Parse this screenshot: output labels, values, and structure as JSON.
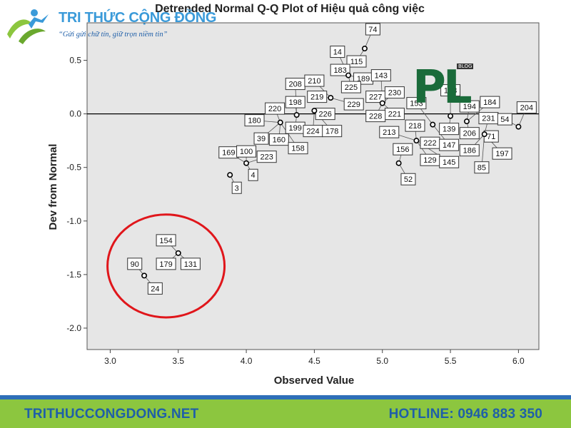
{
  "brand": {
    "name": "TRI THỨC CỘNG ĐỒNG",
    "slogan": "“Gửi gửi chữ tín, giữ trọn niềm tin”"
  },
  "watermark": {
    "text": "PL",
    "badge": "BLOG"
  },
  "footer": {
    "site": "TRITHUCCONGDONG.NET",
    "hotline": "HOTLINE: 0946 883 350"
  },
  "chart_data": {
    "type": "scatter",
    "title": "Detrended Normal Q-Q Plot of Hiệu quả công việc",
    "xlabel": "Observed Value",
    "ylabel": "Dev from Normal",
    "xlim": [
      2.83,
      6.15
    ],
    "ylim": [
      -2.2,
      0.85
    ],
    "xticks": [
      "3.0",
      "3.5",
      "4.0",
      "4.5",
      "5.0",
      "5.5",
      "6.0"
    ],
    "xtick_values": [
      3.0,
      3.5,
      4.0,
      4.5,
      5.0,
      5.5,
      6.0
    ],
    "yticks": [
      "0.5",
      "0.0",
      "-0.5",
      "-1.0",
      "-1.5",
      "-2.0"
    ],
    "ytick_values": [
      0.5,
      0.0,
      -0.5,
      -1.0,
      -1.5,
      -2.0
    ],
    "reference_line": 0.0,
    "grid": false,
    "colors": {
      "plot_bg": "#e6e6e6",
      "point": "#000000",
      "highlight": "#e0161b",
      "line": "#000000"
    },
    "points": [
      {
        "x": 3.25,
        "y": -1.51
      },
      {
        "x": 3.5,
        "y": -1.3
      },
      {
        "x": 3.88,
        "y": -0.57
      },
      {
        "x": 4.0,
        "y": -0.46
      },
      {
        "x": 4.25,
        "y": -0.08
      },
      {
        "x": 4.37,
        "y": -0.01
      },
      {
        "x": 4.5,
        "y": 0.03
      },
      {
        "x": 4.62,
        "y": 0.15
      },
      {
        "x": 4.75,
        "y": 0.36
      },
      {
        "x": 4.87,
        "y": 0.61
      },
      {
        "x": 5.0,
        "y": 0.1
      },
      {
        "x": 5.12,
        "y": -0.46
      },
      {
        "x": 5.25,
        "y": -0.25
      },
      {
        "x": 5.37,
        "y": -0.1
      },
      {
        "x": 5.5,
        "y": -0.02
      },
      {
        "x": 5.62,
        "y": -0.07
      },
      {
        "x": 5.75,
        "y": -0.19
      },
      {
        "x": 6.0,
        "y": -0.12
      }
    ],
    "case_labels": [
      {
        "text": "74",
        "x": 4.93,
        "y": 0.79
      },
      {
        "text": "14",
        "x": 4.67,
        "y": 0.58
      },
      {
        "text": "115",
        "x": 4.81,
        "y": 0.49
      },
      {
        "text": "183",
        "x": 4.69,
        "y": 0.41
      },
      {
        "text": "189",
        "x": 4.86,
        "y": 0.33
      },
      {
        "text": "143",
        "x": 4.99,
        "y": 0.36
      },
      {
        "text": "225",
        "x": 4.77,
        "y": 0.25
      },
      {
        "text": "208",
        "x": 4.36,
        "y": 0.28
      },
      {
        "text": "210",
        "x": 4.5,
        "y": 0.31
      },
      {
        "text": "219",
        "x": 4.52,
        "y": 0.16
      },
      {
        "text": "229",
        "x": 4.79,
        "y": 0.09
      },
      {
        "text": "227",
        "x": 4.95,
        "y": 0.16
      },
      {
        "text": "230",
        "x": 5.09,
        "y": 0.2
      },
      {
        "text": "221",
        "x": 5.09,
        "y": 0.0
      },
      {
        "text": "228",
        "x": 4.95,
        "y": -0.02
      },
      {
        "text": "198",
        "x": 4.36,
        "y": 0.11
      },
      {
        "text": "226",
        "x": 4.58,
        "y": 0.0
      },
      {
        "text": "220",
        "x": 4.21,
        "y": 0.05
      },
      {
        "text": "180",
        "x": 4.06,
        "y": -0.06
      },
      {
        "text": "199",
        "x": 4.36,
        "y": -0.13
      },
      {
        "text": "224",
        "x": 4.49,
        "y": -0.16
      },
      {
        "text": "178",
        "x": 4.63,
        "y": -0.16
      },
      {
        "text": "39",
        "x": 4.11,
        "y": -0.23
      },
      {
        "text": "160",
        "x": 4.24,
        "y": -0.24
      },
      {
        "text": "158",
        "x": 4.38,
        "y": -0.32
      },
      {
        "text": "169",
        "x": 3.87,
        "y": -0.36
      },
      {
        "text": "100",
        "x": 4.0,
        "y": -0.35
      },
      {
        "text": "223",
        "x": 4.15,
        "y": -0.4
      },
      {
        "text": "4",
        "x": 4.05,
        "y": -0.57
      },
      {
        "text": "3",
        "x": 3.93,
        "y": -0.69
      },
      {
        "text": "153",
        "x": 5.25,
        "y": 0.1
      },
      {
        "text": "213",
        "x": 5.05,
        "y": -0.17
      },
      {
        "text": "218",
        "x": 5.24,
        "y": -0.11
      },
      {
        "text": "222",
        "x": 5.35,
        "y": -0.27
      },
      {
        "text": "156",
        "x": 5.15,
        "y": -0.33
      },
      {
        "text": "129",
        "x": 5.35,
        "y": -0.43
      },
      {
        "text": "147",
        "x": 5.49,
        "y": -0.29
      },
      {
        "text": "145",
        "x": 5.49,
        "y": -0.45
      },
      {
        "text": "139",
        "x": 5.49,
        "y": -0.14
      },
      {
        "text": "52",
        "x": 5.19,
        "y": -0.61
      },
      {
        "text": "163",
        "x": 5.5,
        "y": 0.22
      },
      {
        "text": "194",
        "x": 5.64,
        "y": 0.07
      },
      {
        "text": "184",
        "x": 5.79,
        "y": 0.11
      },
      {
        "text": "231",
        "x": 5.78,
        "y": -0.04
      },
      {
        "text": "54",
        "x": 5.9,
        "y": -0.05
      },
      {
        "text": "204",
        "x": 6.06,
        "y": 0.06
      },
      {
        "text": "206",
        "x": 5.64,
        "y": -0.18
      },
      {
        "text": "71",
        "x": 5.8,
        "y": -0.21
      },
      {
        "text": "186",
        "x": 5.64,
        "y": -0.34
      },
      {
        "text": "197",
        "x": 5.88,
        "y": -0.37
      },
      {
        "text": "85",
        "x": 5.73,
        "y": -0.5
      },
      {
        "text": "154",
        "x": 3.41,
        "y": -1.18
      },
      {
        "text": "90",
        "x": 3.18,
        "y": -1.4
      },
      {
        "text": "179",
        "x": 3.41,
        "y": -1.4
      },
      {
        "text": "131",
        "x": 3.59,
        "y": -1.4
      },
      {
        "text": "24",
        "x": 3.33,
        "y": -1.63
      }
    ],
    "highlight_region": {
      "cx": 3.41,
      "cy": -1.42,
      "rx": 0.43,
      "ry": 0.48
    }
  }
}
